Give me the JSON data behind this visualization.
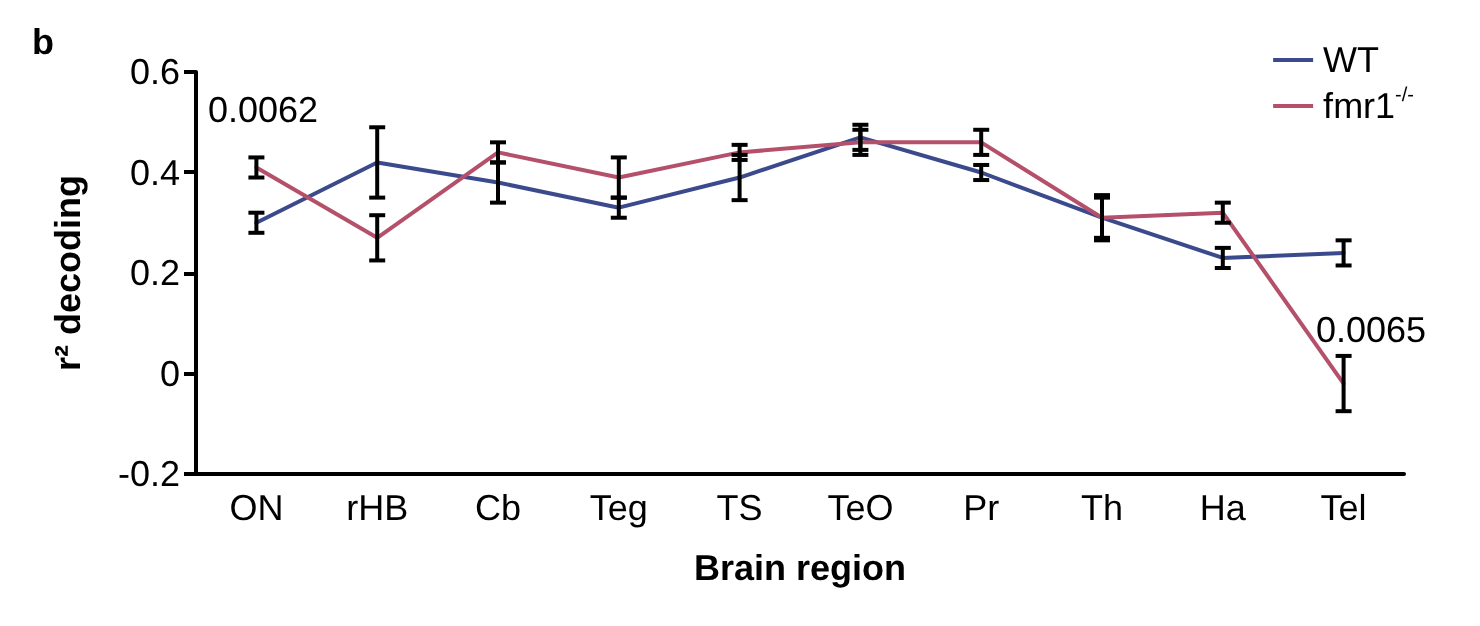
{
  "chart_data": {
    "type": "line",
    "xlabel": "Brain region",
    "ylabel": "r² decoding",
    "categories": [
      "ON",
      "rHB",
      "Cb",
      "Teg",
      "TS",
      "TeO",
      "Pr",
      "Th",
      "Ha",
      "Tel"
    ],
    "series": [
      {
        "name": "WT",
        "color": "#3b4a8c",
        "values": [
          0.3,
          0.42,
          0.38,
          0.33,
          0.39,
          0.47,
          0.4,
          0.31,
          0.23,
          0.24
        ],
        "errors": [
          0.02,
          0.07,
          0.04,
          0.02,
          0.045,
          0.025,
          0.015,
          0.04,
          0.02,
          0.025
        ]
      },
      {
        "name": "fmr1$^{-/-}$",
        "color": "#b5506a",
        "values": [
          0.41,
          0.27,
          0.44,
          0.39,
          0.44,
          0.46,
          0.46,
          0.31,
          0.32,
          -0.02
        ],
        "errors": [
          0.02,
          0.045,
          0.02,
          0.04,
          0.015,
          0.025,
          0.025,
          0.045,
          0.02,
          0.055
        ]
      }
    ],
    "ylim": [
      -0.2,
      0.6
    ],
    "yticks": [
      -0.2,
      0,
      0.2,
      0.4,
      0.6
    ],
    "legend": "top right",
    "marker": "none",
    "line_style": "solid",
    "annotations": [
      "b",
      "0.0062",
      "0.0065"
    ]
  }
}
